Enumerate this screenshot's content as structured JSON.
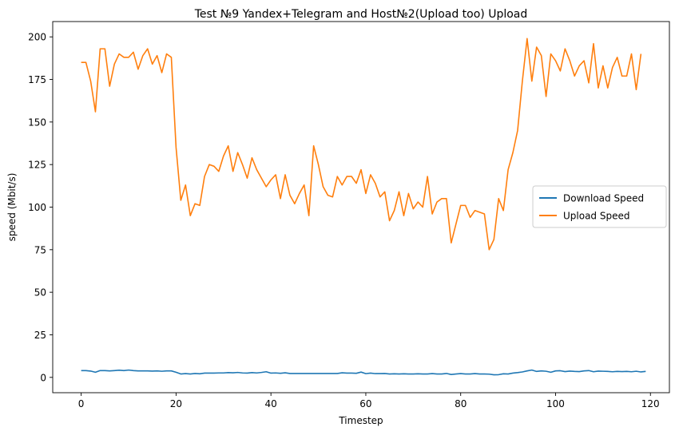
{
  "chart_data": {
    "type": "line",
    "title": "Test №9 Yandex+Telegram and Host№2(Upload too) Upload",
    "xlabel": "Timestep",
    "ylabel": "speed (Mbit/s)",
    "xlim": [
      -6,
      124
    ],
    "ylim": [
      -9,
      209
    ],
    "xticks": [
      0,
      20,
      40,
      60,
      80,
      100,
      120
    ],
    "yticks": [
      0,
      25,
      50,
      75,
      100,
      125,
      150,
      175,
      200
    ],
    "legend_position": "center-right",
    "grid": false,
    "series": [
      {
        "name": "Download Speed",
        "color": "#1f77b4",
        "values": [
          4,
          4,
          3.7,
          3,
          4,
          4,
          3.8,
          4,
          4.2,
          4,
          4.3,
          4,
          3.8,
          3.8,
          3.8,
          3.7,
          3.8,
          3.6,
          3.8,
          3.8,
          3,
          2,
          2.2,
          2,
          2.3,
          2.1,
          2.5,
          2.5,
          2.5,
          2.6,
          2.6,
          2.8,
          2.7,
          2.9,
          2.6,
          2.5,
          2.8,
          2.6,
          2.9,
          3.3,
          2.5,
          2.6,
          2.4,
          2.7,
          2.3,
          2.3,
          2.3,
          2.3,
          2.3,
          2.3,
          2.3,
          2.3,
          2.3,
          2.3,
          2.3,
          2.7,
          2.5,
          2.5,
          2.4,
          3.1,
          2.2,
          2.5,
          2.2,
          2.2,
          2.3,
          2,
          2.1,
          2,
          2.1,
          2,
          2,
          2.1,
          2,
          2,
          2.2,
          2,
          2,
          2.3,
          1.7,
          2,
          2.2,
          2,
          2,
          2.2,
          2,
          2,
          1.9,
          1.5,
          1.6,
          2.1,
          2,
          2.5,
          2.8,
          3.2,
          3.8,
          4.3,
          3.5,
          3.8,
          3.6,
          3,
          3.8,
          3.9,
          3.4,
          3.7,
          3.5,
          3.4,
          3.8,
          4,
          3.3,
          3.7,
          3.6,
          3.5,
          3.3,
          3.5,
          3.4,
          3.5,
          3.3,
          3.6,
          3.2,
          3.5
        ]
      },
      {
        "name": "Upload Speed",
        "color": "#ff7f0e",
        "values": [
          185,
          185,
          174,
          156,
          193,
          193,
          171,
          184,
          190,
          188,
          188,
          191,
          181,
          189,
          193,
          184,
          189,
          179,
          190,
          188,
          135,
          104,
          113,
          95,
          102,
          101,
          118,
          125,
          124,
          121,
          130,
          136,
          121,
          132,
          125,
          117,
          129,
          122,
          117,
          112,
          116,
          119,
          105,
          119,
          107,
          102,
          108,
          113,
          95,
          136,
          125,
          112,
          107,
          106,
          118,
          113,
          118,
          118,
          114,
          122,
          108,
          119,
          114,
          106,
          109,
          92,
          98,
          109,
          95,
          108,
          99,
          103,
          100,
          118,
          96,
          103,
          105,
          105,
          79,
          90,
          101,
          101,
          94,
          98,
          97,
          96,
          75,
          81,
          105,
          98,
          122,
          132,
          145,
          174,
          199,
          174,
          194,
          189,
          165,
          190,
          186,
          180,
          193,
          186,
          177,
          183,
          186,
          173,
          196,
          170,
          183,
          170,
          182,
          188,
          177,
          177,
          190,
          169,
          190
        ]
      }
    ]
  }
}
